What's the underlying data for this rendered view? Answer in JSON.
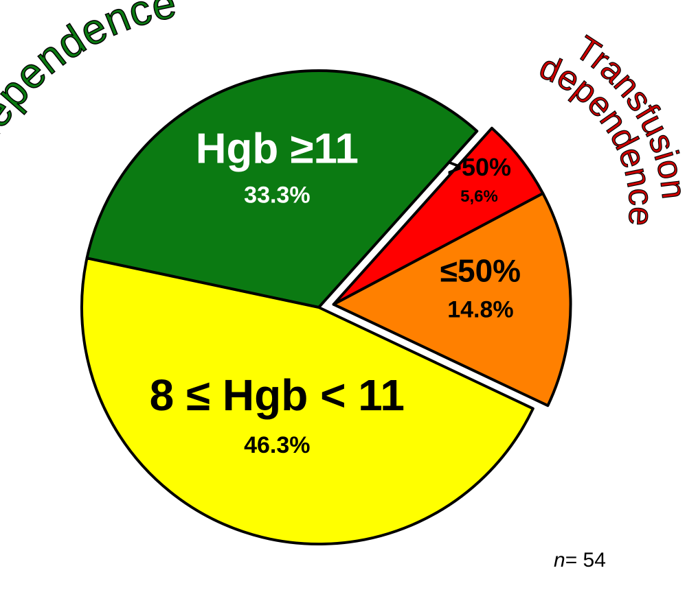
{
  "chart_data": {
    "type": "pie",
    "slices": [
      {
        "label": "Hgb ≥11",
        "value": 33.3,
        "value_label": "33.3%",
        "color": "#0b7a12",
        "text_color": "#ffffff"
      },
      {
        "label": ">50%",
        "value": 5.6,
        "value_label": "5,6%",
        "color": "#ff0000",
        "text_color": "#000000",
        "exploded": true
      },
      {
        "label": "≤50%",
        "value": 14.8,
        "value_label": "14.8%",
        "color": "#ff8000",
        "text_color": "#000000",
        "exploded": true
      },
      {
        "label": "8 ≤ Hgb < 11",
        "value": 46.3,
        "value_label": "46.3%",
        "color": "#ffff00",
        "text_color": "#000000"
      }
    ],
    "group_labels": [
      {
        "text": "Transfusion independence",
        "color": "#0b7a12"
      },
      {
        "text_lines": [
          "Transfusion",
          "dependence"
        ],
        "color": "#cc0000"
      }
    ],
    "n_prefix": "n",
    "n_value": "= 54"
  }
}
